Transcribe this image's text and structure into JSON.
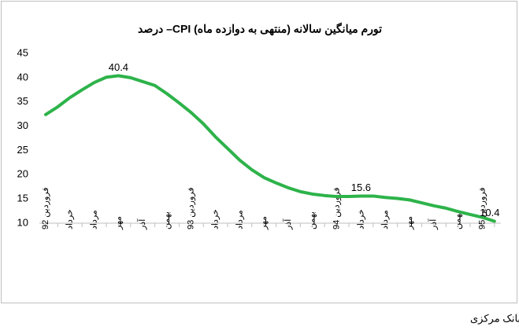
{
  "chart_data": {
    "type": "line",
    "title": "تورم میانگین سالانه (منتهی به دوازده ماه) CPI– درصد",
    "source": "مأخذ: بانک مرکزی",
    "categories": [
      "فروردین 92",
      null,
      "خرداد",
      null,
      "مرداد",
      null,
      "مهر",
      null,
      "آذر",
      null,
      "بهمن",
      null,
      "فروردین 93",
      null,
      "خرداد",
      null,
      "مرداد",
      null,
      "مهر",
      null,
      "آذر",
      null,
      "بهمن",
      null,
      "فروردین 94",
      null,
      "خرداد",
      null,
      "مرداد",
      null,
      "مهر",
      null,
      "آذر",
      null,
      "بهمن",
      null,
      "فروردین 95",
      null
    ],
    "values": [
      32.4,
      34.0,
      35.9,
      37.5,
      39.0,
      40.1,
      40.4,
      40.0,
      39.2,
      38.4,
      36.7,
      34.8,
      32.8,
      30.5,
      27.8,
      25.4,
      23.0,
      21.0,
      19.4,
      18.3,
      17.3,
      16.5,
      16.0,
      15.7,
      15.5,
      15.5,
      15.6,
      15.6,
      15.3,
      15.1,
      14.8,
      14.2,
      13.6,
      13.1,
      12.4,
      11.8,
      11.2,
      10.4
    ],
    "value_labels": [
      null,
      null,
      null,
      null,
      null,
      null,
      "40.4",
      null,
      null,
      null,
      null,
      null,
      null,
      null,
      null,
      null,
      null,
      null,
      null,
      null,
      null,
      null,
      null,
      null,
      null,
      null,
      "15.6",
      null,
      null,
      null,
      null,
      null,
      null,
      null,
      null,
      null,
      null,
      "10.4"
    ],
    "color": "#2db34a",
    "ylim": [
      10,
      45
    ],
    "yticks": [
      10,
      15,
      20,
      25,
      30,
      35,
      40,
      45
    ],
    "grid": false
  }
}
